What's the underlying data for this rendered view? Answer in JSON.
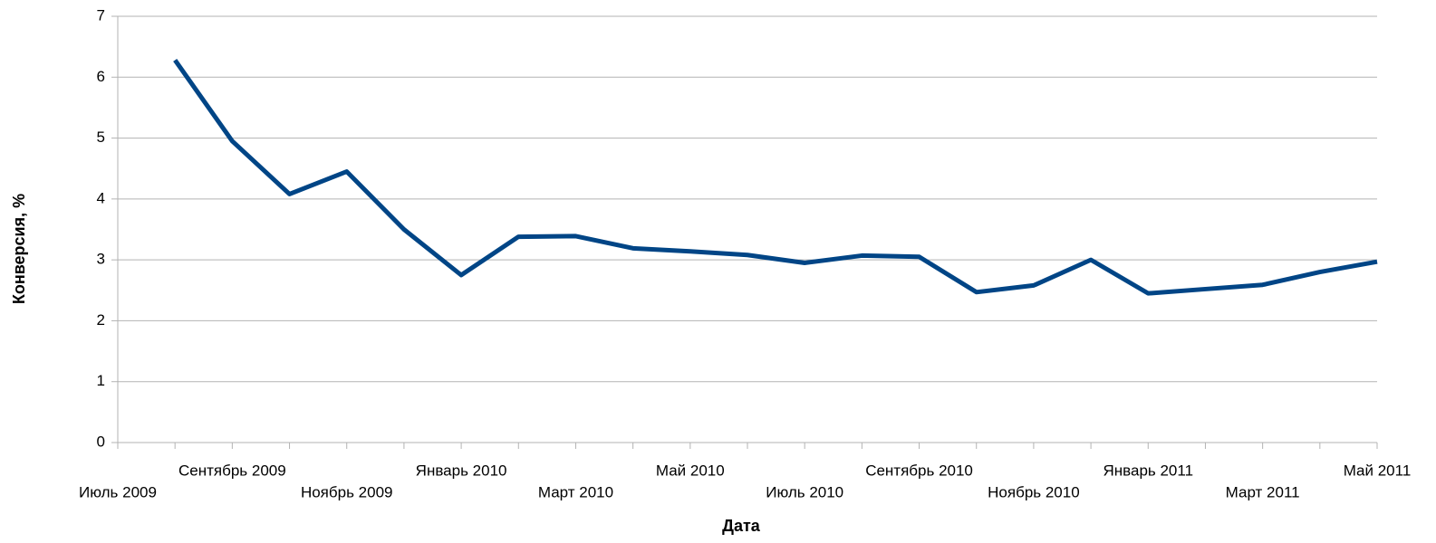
{
  "chart_data": {
    "type": "line",
    "xlabel": "Дата",
    "ylabel": "Конверсия, %",
    "categories": [
      "Июль 2009",
      null,
      "Сентябрь 2009",
      null,
      "Ноябрь 2009",
      null,
      "Январь 2010",
      null,
      "Март 2010",
      null,
      "Май 2010",
      null,
      "Июль 2010",
      null,
      "Сентябрь 2010",
      null,
      "Ноябрь 2010",
      null,
      "Январь 2011",
      null,
      "Март 2011",
      null,
      "Май 2011"
    ],
    "series": [
      {
        "name": "Конверсия",
        "color": "#004586",
        "values": [
          null,
          6.28,
          4.95,
          4.08,
          4.45,
          3.5,
          2.75,
          3.38,
          3.39,
          3.19,
          3.14,
          3.08,
          2.95,
          3.07,
          3.05,
          2.47,
          2.58,
          3.0,
          2.45,
          2.52,
          2.59,
          2.8,
          2.97
        ]
      }
    ],
    "ylim": [
      0,
      7
    ],
    "yticks": [
      0,
      1,
      2,
      3,
      4,
      5,
      6,
      7
    ],
    "grid": true
  }
}
